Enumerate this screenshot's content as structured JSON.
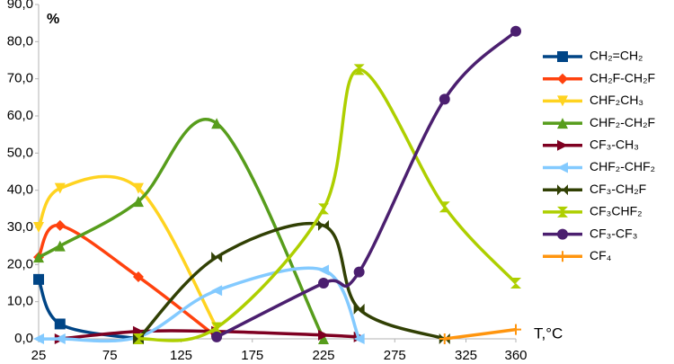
{
  "chart_data": {
    "type": "line",
    "y_label": "%",
    "x_label": "T,°C",
    "x": [
      25,
      40,
      95,
      150,
      225,
      250,
      310,
      360
    ],
    "xlim": [
      25,
      360
    ],
    "xticks": [
      25,
      75,
      125,
      175,
      225,
      275,
      325,
      360
    ],
    "ylim": [
      0,
      90
    ],
    "yticks": [
      {
        "value": 0,
        "label": "0,0"
      },
      {
        "value": 10,
        "label": "10,0"
      },
      {
        "value": 20,
        "label": "20,0"
      },
      {
        "value": 30,
        "label": "30,0"
      },
      {
        "value": 40,
        "label": "40,0"
      },
      {
        "value": 50,
        "label": "50,0"
      },
      {
        "value": 60,
        "label": "60,0"
      },
      {
        "value": 70,
        "label": "70,0"
      },
      {
        "value": 80,
        "label": "80,0"
      },
      {
        "value": 90,
        "label": "90,0"
      }
    ],
    "smooth": true,
    "series": [
      {
        "name": "CH₂=CH₂",
        "color": "#004586",
        "marker": "square",
        "values": [
          16,
          4,
          0,
          null,
          null,
          null,
          null,
          null
        ]
      },
      {
        "name": "CH₂F-CH₂F",
        "color": "#ff420e",
        "marker": "diamond",
        "values": [
          22,
          30.5,
          16.7,
          0.5,
          null,
          null,
          null,
          null
        ]
      },
      {
        "name": "CHF₂CH₃",
        "color": "#ffd320",
        "marker": "triangle-down",
        "values": [
          30,
          40.5,
          40.5,
          3,
          null,
          null,
          null,
          null
        ]
      },
      {
        "name": "CHF₂-CH₂F",
        "color": "#579d1c",
        "marker": "triangle-up",
        "values": [
          22,
          25,
          37,
          58,
          0,
          null,
          null,
          null
        ]
      },
      {
        "name": "CF₃-CH₃",
        "color": "#7e0021",
        "marker": "triangle-right",
        "values": [
          null,
          0,
          2,
          2,
          1,
          0.5,
          null,
          null
        ]
      },
      {
        "name": "CHF₂-CHF₂",
        "color": "#83caff",
        "marker": "triangle-left",
        "values": [
          0,
          0,
          0.5,
          13,
          18.5,
          0,
          null,
          null
        ]
      },
      {
        "name": "CF₃-CH₂F",
        "color": "#314004",
        "marker": "bowtie",
        "values": [
          null,
          null,
          0,
          22,
          30.5,
          8,
          0,
          null
        ]
      },
      {
        "name": "CF₃CHF₂",
        "color": "#aecf00",
        "marker": "hourglass",
        "values": [
          null,
          null,
          0,
          3,
          35,
          72.5,
          35.5,
          15
        ]
      },
      {
        "name": "CF₃-CF₃",
        "color": "#4b1f6f",
        "marker": "circle",
        "values": [
          null,
          null,
          null,
          0.5,
          15,
          18,
          64.5,
          82.8
        ]
      },
      {
        "name": "CF₄",
        "color": "#ff950e",
        "marker": "plus",
        "values": [
          null,
          null,
          null,
          null,
          null,
          null,
          0,
          2.5
        ]
      }
    ]
  }
}
